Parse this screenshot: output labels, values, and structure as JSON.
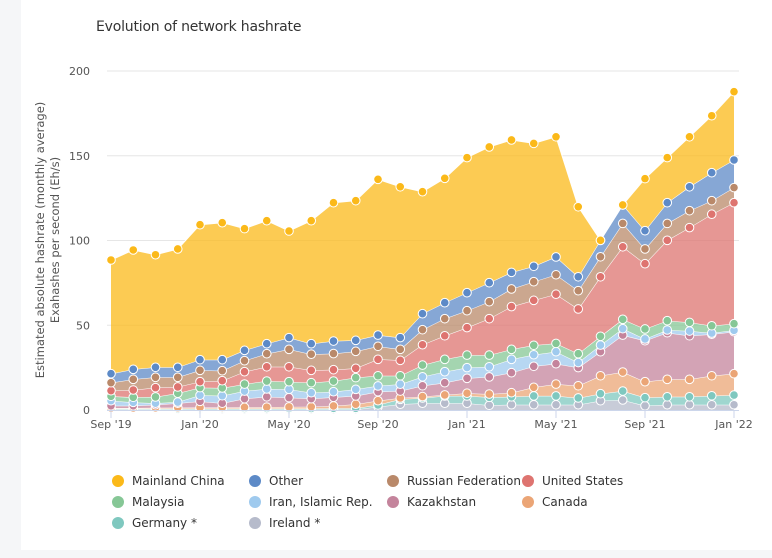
{
  "chart_data": {
    "type": "area",
    "stacked": true,
    "title": "Evolution of network hashrate",
    "xlabel": "",
    "ylabel": [
      "Estimated absolute hashrate (monthly average)",
      "Exahashes per second (Eh/s)"
    ],
    "ylim": [
      0,
      200
    ],
    "yticks": [
      0,
      50,
      100,
      150,
      200
    ],
    "grid": true,
    "legend_position": "bottom",
    "x": [
      "Sep '19",
      "Oct '19",
      "Nov '19",
      "Dec '19",
      "Jan '20",
      "Feb '20",
      "Mar '20",
      "Apr '20",
      "May '20",
      "Jun '20",
      "Jul '20",
      "Aug '20",
      "Sep '20",
      "Oct '20",
      "Nov '20",
      "Dec '20",
      "Jan '21",
      "Feb '21",
      "Mar '21",
      "Apr '21",
      "May '21",
      "Jun '21",
      "Jul '21",
      "Aug '21",
      "Sep '21",
      "Oct '21",
      "Nov '21",
      "Dec '21",
      "Jan '22"
    ],
    "xtick_labels": [
      "Sep '19",
      "Jan '20",
      "May '20",
      "Sep '20",
      "Jan '21",
      "May '21",
      "Sep '21",
      "Jan '22"
    ],
    "xtick_indices": [
      0,
      4,
      8,
      12,
      16,
      20,
      24,
      28
    ],
    "series": [
      {
        "name": "Ireland *",
        "color": "#b6bbcb",
        "values": [
          0.3,
          0.3,
          0.3,
          0.3,
          0.3,
          0.3,
          0.3,
          0.3,
          0.3,
          0.3,
          0.3,
          0.3,
          1.9,
          3.4,
          4.0,
          4.0,
          4.0,
          2.8,
          3.1,
          3.1,
          3.1,
          3.1,
          5.5,
          5.9,
          2.5,
          3.1,
          3.1,
          3.1,
          3.1
        ]
      },
      {
        "name": "Germany *",
        "color": "#7fc8bf",
        "values": [
          0.5,
          0.5,
          0.5,
          0.5,
          0.6,
          0.6,
          0.6,
          0.6,
          0.6,
          0.6,
          0.7,
          0.7,
          1.1,
          2.9,
          3.1,
          4.3,
          4.3,
          4.7,
          4.7,
          5.2,
          5.2,
          4.0,
          4.1,
          5.3,
          4.8,
          4.7,
          4.7,
          5.3,
          5.7
        ]
      },
      {
        "name": "Canada",
        "color": "#eba576",
        "values": [
          0.4,
          0.4,
          0.5,
          0.6,
          0.6,
          0.6,
          0.7,
          0.8,
          0.9,
          1.0,
          1.4,
          2.4,
          2.5,
          0.8,
          0.8,
          0.6,
          1.6,
          1.9,
          2.4,
          5.1,
          7.0,
          7.2,
          10.6,
          11.2,
          9.4,
          10.3,
          10.3,
          11.8,
          12.6
        ]
      },
      {
        "name": "Kazakhstan",
        "color": "#c4849c",
        "values": [
          1.3,
          1.3,
          1.8,
          2.6,
          3.6,
          2.5,
          5.1,
          6.1,
          5.5,
          4.8,
          5.1,
          4.9,
          5.3,
          4.1,
          6.4,
          7.2,
          8.8,
          10.1,
          11.8,
          12.4,
          12.0,
          10.7,
          14.2,
          21.8,
          24.2,
          27.5,
          25.7,
          24.5,
          24.8
        ]
      },
      {
        "name": "Iran, Islamic Rep.",
        "color": "#9fcaee",
        "values": [
          3.0,
          2.0,
          0.9,
          0.7,
          3.6,
          4.4,
          4.5,
          4.6,
          4.9,
          3.5,
          3.3,
          3.9,
          3.4,
          4.0,
          5.3,
          6.5,
          6.3,
          6.0,
          7.9,
          6.8,
          7.1,
          3.0,
          3.9,
          3.8,
          1.0,
          1.6,
          2.8,
          0.7,
          0.8
        ]
      },
      {
        "name": "Malaysia",
        "color": "#86c796",
        "values": [
          2.6,
          3.0,
          3.7,
          5.2,
          4.5,
          4.6,
          4.1,
          4.7,
          4.5,
          5.9,
          6.3,
          6.9,
          6.0,
          5.0,
          6.9,
          7.3,
          7.4,
          6.9,
          5.9,
          5.6,
          4.9,
          5.2,
          5.2,
          5.5,
          5.9,
          5.5,
          5.1,
          4.3,
          3.9
        ]
      },
      {
        "name": "United States",
        "color": "#de7470",
        "values": [
          3.3,
          4.3,
          5.5,
          3.7,
          3.5,
          4.3,
          7.3,
          8.4,
          8.8,
          7.3,
          6.7,
          5.5,
          9.7,
          9.1,
          12.0,
          13.9,
          16.2,
          21.5,
          25.2,
          26.5,
          29.0,
          26.4,
          35.1,
          42.8,
          38.5,
          47.4,
          55.9,
          65.8,
          71.4
        ]
      },
      {
        "name": "Russian Federation",
        "color": "#b9896a",
        "values": [
          4.7,
          6.3,
          6.1,
          5.7,
          6.7,
          5.9,
          6.5,
          7.7,
          10.3,
          9.5,
          9.5,
          10.0,
          7.7,
          6.5,
          8.9,
          10.1,
          10.0,
          10.0,
          10.4,
          11.0,
          11.5,
          10.8,
          11.8,
          13.8,
          8.7,
          10.0,
          10.0,
          8.0,
          8.9
        ]
      },
      {
        "name": "Other",
        "color": "#5d8ac7",
        "values": [
          5.3,
          5.9,
          5.9,
          5.9,
          6.3,
          6.5,
          6.1,
          5.9,
          6.9,
          6.2,
          7.4,
          6.5,
          6.6,
          6.9,
          9.4,
          9.4,
          10.6,
          11.2,
          9.8,
          9.1,
          10.5,
          8.2,
          9.7,
          10.9,
          10.8,
          12.2,
          14.1,
          16.5,
          16.3
        ]
      },
      {
        "name": "Mainland China",
        "color": "#fbb919",
        "values": [
          67.1,
          70.4,
          66.4,
          69.8,
          79.6,
          80.8,
          71.8,
          72.6,
          62.9,
          72.6,
          81.6,
          82.4,
          91.9,
          89.0,
          72.0,
          73.4,
          79.7,
          80.1,
          78.1,
          72.5,
          70.9,
          41.3,
          0,
          0,
          30.7,
          26.6,
          29.5,
          33.6,
          40.3
        ]
      }
    ]
  },
  "legend": [
    {
      "label": "Mainland China",
      "color": "#fbb919"
    },
    {
      "label": "Other",
      "color": "#5d8ac7"
    },
    {
      "label": "Russian Federation",
      "color": "#b9896a"
    },
    {
      "label": "United States",
      "color": "#de7470"
    },
    {
      "label": "Malaysia",
      "color": "#86c796"
    },
    {
      "label": "Iran, Islamic Rep.",
      "color": "#9fcaee"
    },
    {
      "label": "Kazakhstan",
      "color": "#c4849c"
    },
    {
      "label": "Canada",
      "color": "#eba576"
    },
    {
      "label": "Germany *",
      "color": "#7fc8bf"
    },
    {
      "label": "Ireland *",
      "color": "#b6bbcb"
    }
  ]
}
